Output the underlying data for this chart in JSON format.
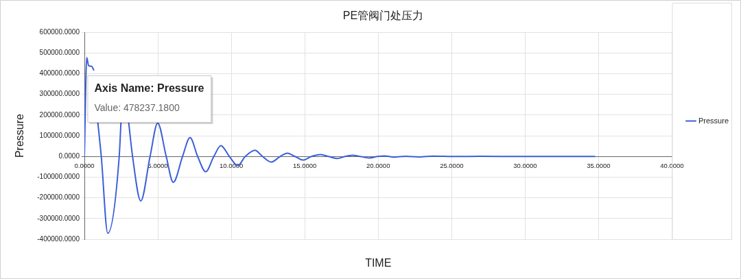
{
  "chart_data": {
    "type": "line",
    "title": "PE管阀门处压力",
    "xlabel": "TIME",
    "ylabel": "Pressure",
    "x": [
      0,
      0.16,
      0.29,
      0.49,
      0.65,
      0.8,
      0.91,
      1.15,
      1.59,
      2.37,
      2.49,
      2.75,
      3.01,
      3.28,
      3.84,
      4.47,
      4.99,
      5.57,
      6.05,
      6.68,
      7.19,
      7.71,
      8.26,
      8.81,
      9.29,
      9.87,
      10.44,
      10.95,
      11.61,
      12.13,
      12.72,
      13.32,
      13.82,
      14.34,
      14.9,
      15.45,
      16.08,
      16.63,
      17.19,
      17.74,
      18.25,
      18.77,
      19.4,
      19.95,
      20.43,
      21.06,
      21.85,
      22.8,
      23.74,
      25.3,
      27,
      30,
      34.77
    ],
    "series": [
      {
        "name": "Pressure",
        "color": "#3a5fd9",
        "values": [
          0,
          478237,
          439000,
          436000,
          416000,
          null,
          168000,
          0,
          -371000,
          0,
          168000,
          null,
          168000,
          0,
          -215000,
          0,
          162000,
          0,
          -125000,
          0,
          91000,
          0,
          -74000,
          0,
          52000,
          0,
          -44000,
          0,
          30000,
          0,
          -27000,
          0,
          16000,
          0,
          -17000,
          0,
          9000,
          0,
          -10000,
          0,
          6000,
          0,
          -7000,
          0,
          3000,
          -3000,
          1000,
          -2000,
          2000,
          0,
          1000,
          0,
          0
        ]
      }
    ],
    "xlim": [
      0,
      40
    ],
    "xticks": [
      {
        "value": 0,
        "label": "0.0000"
      },
      {
        "value": 5,
        "label": "5.0000"
      },
      {
        "value": 10,
        "label": "10.0000"
      },
      {
        "value": 15,
        "label": "15.0000"
      },
      {
        "value": 20,
        "label": "20.0000"
      },
      {
        "value": 25,
        "label": "25.0000"
      },
      {
        "value": 30,
        "label": "30.0000"
      },
      {
        "value": 35,
        "label": "35.0000"
      },
      {
        "value": 40,
        "label": "40.0000"
      }
    ],
    "ylim": [
      -400000,
      600000
    ],
    "yticks": [
      {
        "value": -400000,
        "label": "-400000.0000"
      },
      {
        "value": -300000,
        "label": "-300000.0000"
      },
      {
        "value": -200000,
        "label": "-200000.0000"
      },
      {
        "value": -100000,
        "label": "-100000.0000"
      },
      {
        "value": 0,
        "label": "0.0000"
      },
      {
        "value": 100000,
        "label": "100000.0000"
      },
      {
        "value": 200000,
        "label": "200000.0000"
      },
      {
        "value": 300000,
        "label": "300000.0000"
      },
      {
        "value": 400000,
        "label": "400000.0000"
      },
      {
        "value": 500000,
        "label": "500000.0000"
      },
      {
        "value": 600000,
        "label": "600000.0000"
      }
    ],
    "grid": true,
    "legend": "right",
    "marker": "none",
    "line_style": "solid",
    "annotations": [
      {
        "text": "Axis Name: Pressure\nValue: 478237.1800",
        "x": 0.16,
        "y": 478237
      }
    ]
  }
}
